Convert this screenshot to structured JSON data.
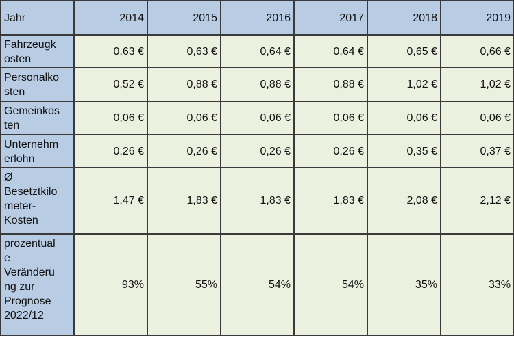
{
  "table": {
    "header": [
      "Jahr",
      "2014",
      "2015",
      "2016",
      "2017",
      "2018",
      "2019"
    ],
    "rows": [
      [
        "Fahrzeugk\nosten",
        "0,63 €",
        "0,63 €",
        "0,64 €",
        "0,64 €",
        "0,65 €",
        "0,66 €"
      ],
      [
        "Personalko\nsten",
        "0,52 €",
        "0,88 €",
        "0,88 €",
        "0,88 €",
        "1,02 €",
        "1,02 €"
      ],
      [
        "Gemeinkos\nten",
        "0,06 €",
        "0,06 €",
        "0,06 €",
        "0,06 €",
        "0,06 €",
        "0,06 €"
      ],
      [
        "Unternehm\nerlohn",
        "0,26 €",
        "0,26 €",
        "0,26 €",
        "0,26 €",
        "0,35 €",
        "0,37 €"
      ],
      [
        "Ø\nBesetztkilo\nmeter-\nKosten",
        "1,47 €",
        "1,83 €",
        "1,83 €",
        "1,83 €",
        "2,08 €",
        "2,12 €"
      ],
      [
        "prozentual\ne\nVeränderu\nng zur\nPrognose\n2022/12",
        "93%",
        "55%",
        "54%",
        "54%",
        "35%",
        "33%"
      ]
    ]
  }
}
